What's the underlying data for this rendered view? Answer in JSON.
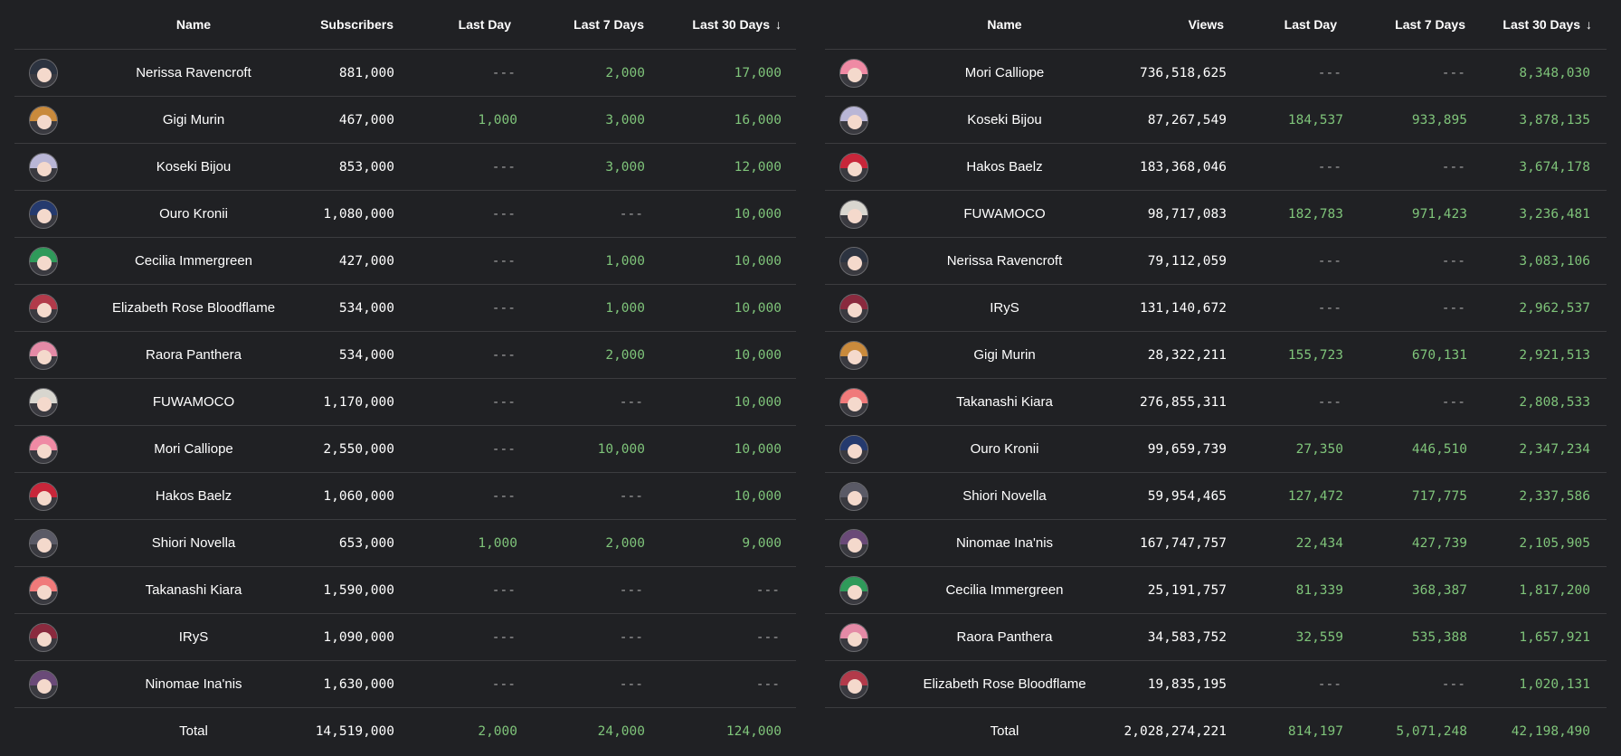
{
  "colors": {
    "background": "#202124",
    "divider": "#3c3c3f",
    "positive": "#7fc47a",
    "dash": "#a8a8a8",
    "text": "#ffffff"
  },
  "subscribers_table": {
    "headers": [
      "Name",
      "Subscribers",
      "Last Day",
      "Last 7 Days",
      "Last 30 Days"
    ],
    "sort_icon": "arrow-down-icon",
    "rows": [
      {
        "name": "Nerissa Ravencroft",
        "v1": "881,000",
        "v2": "---",
        "v3": "2,000",
        "v4": "17,000",
        "hair": "#2c3340"
      },
      {
        "name": "Gigi Murin",
        "v1": "467,000",
        "v2": "1,000",
        "v3": "3,000",
        "v4": "16,000",
        "hair": "#c98a3c"
      },
      {
        "name": "Koseki Bijou",
        "v1": "853,000",
        "v2": "---",
        "v3": "3,000",
        "v4": "12,000",
        "hair": "#b9b6d6"
      },
      {
        "name": "Ouro Kronii",
        "v1": "1,080,000",
        "v2": "---",
        "v3": "---",
        "v4": "10,000",
        "hair": "#253a6e"
      },
      {
        "name": "Cecilia Immergreen",
        "v1": "427,000",
        "v2": "---",
        "v3": "1,000",
        "v4": "10,000",
        "hair": "#2f9a5a"
      },
      {
        "name": "Elizabeth Rose Bloodflame",
        "v1": "534,000",
        "v2": "---",
        "v3": "1,000",
        "v4": "10,000",
        "hair": "#b23a4a"
      },
      {
        "name": "Raora Panthera",
        "v1": "534,000",
        "v2": "---",
        "v3": "2,000",
        "v4": "10,000",
        "hair": "#e48aa6"
      },
      {
        "name": "FUWAMOCO",
        "v1": "1,170,000",
        "v2": "---",
        "v3": "---",
        "v4": "10,000",
        "hair": "#d8d6cf"
      },
      {
        "name": "Mori Calliope",
        "v1": "2,550,000",
        "v2": "---",
        "v3": "10,000",
        "v4": "10,000",
        "hair": "#ef8aa4"
      },
      {
        "name": "Hakos Baelz",
        "v1": "1,060,000",
        "v2": "---",
        "v3": "---",
        "v4": "10,000",
        "hair": "#c8263a"
      },
      {
        "name": "Shiori Novella",
        "v1": "653,000",
        "v2": "1,000",
        "v3": "2,000",
        "v4": "9,000",
        "hair": "#5a5a66"
      },
      {
        "name": "Takanashi Kiara",
        "v1": "1,590,000",
        "v2": "---",
        "v3": "---",
        "v4": "---",
        "hair": "#f07a7a"
      },
      {
        "name": "IRyS",
        "v1": "1,090,000",
        "v2": "---",
        "v3": "---",
        "v4": "---",
        "hair": "#8a2a3e"
      },
      {
        "name": "Ninomae Ina'nis",
        "v1": "1,630,000",
        "v2": "---",
        "v3": "---",
        "v4": "---",
        "hair": "#6a4a78"
      }
    ],
    "total": {
      "name": "Total",
      "v1": "14,519,000",
      "v2": "2,000",
      "v3": "24,000",
      "v4": "124,000"
    }
  },
  "views_table": {
    "headers": [
      "Name",
      "Views",
      "Last Day",
      "Last 7 Days",
      "Last 30 Days"
    ],
    "sort_icon": "arrow-down-icon",
    "rows": [
      {
        "name": "Mori Calliope",
        "v1": "736,518,625",
        "v2": "---",
        "v3": "---",
        "v4": "8,348,030",
        "hair": "#ef8aa4"
      },
      {
        "name": "Koseki Bijou",
        "v1": "87,267,549",
        "v2": "184,537",
        "v3": "933,895",
        "v4": "3,878,135",
        "hair": "#b9b6d6"
      },
      {
        "name": "Hakos Baelz",
        "v1": "183,368,046",
        "v2": "---",
        "v3": "---",
        "v4": "3,674,178",
        "hair": "#c8263a"
      },
      {
        "name": "FUWAMOCO",
        "v1": "98,717,083",
        "v2": "182,783",
        "v3": "971,423",
        "v4": "3,236,481",
        "hair": "#d8d6cf"
      },
      {
        "name": "Nerissa Ravencroft",
        "v1": "79,112,059",
        "v2": "---",
        "v3": "---",
        "v4": "3,083,106",
        "hair": "#2c3340"
      },
      {
        "name": "IRyS",
        "v1": "131,140,672",
        "v2": "---",
        "v3": "---",
        "v4": "2,962,537",
        "hair": "#8a2a3e"
      },
      {
        "name": "Gigi Murin",
        "v1": "28,322,211",
        "v2": "155,723",
        "v3": "670,131",
        "v4": "2,921,513",
        "hair": "#c98a3c"
      },
      {
        "name": "Takanashi Kiara",
        "v1": "276,855,311",
        "v2": "---",
        "v3": "---",
        "v4": "2,808,533",
        "hair": "#f07a7a"
      },
      {
        "name": "Ouro Kronii",
        "v1": "99,659,739",
        "v2": "27,350",
        "v3": "446,510",
        "v4": "2,347,234",
        "hair": "#253a6e"
      },
      {
        "name": "Shiori Novella",
        "v1": "59,954,465",
        "v2": "127,472",
        "v3": "717,775",
        "v4": "2,337,586",
        "hair": "#5a5a66"
      },
      {
        "name": "Ninomae Ina'nis",
        "v1": "167,747,757",
        "v2": "22,434",
        "v3": "427,739",
        "v4": "2,105,905",
        "hair": "#6a4a78"
      },
      {
        "name": "Cecilia Immergreen",
        "v1": "25,191,757",
        "v2": "81,339",
        "v3": "368,387",
        "v4": "1,817,200",
        "hair": "#2f9a5a"
      },
      {
        "name": "Raora Panthera",
        "v1": "34,583,752",
        "v2": "32,559",
        "v3": "535,388",
        "v4": "1,657,921",
        "hair": "#e48aa6"
      },
      {
        "name": "Elizabeth Rose Bloodflame",
        "v1": "19,835,195",
        "v2": "---",
        "v3": "---",
        "v4": "1,020,131",
        "hair": "#b23a4a"
      }
    ],
    "total": {
      "name": "Total",
      "v1": "2,028,274,221",
      "v2": "814,197",
      "v3": "5,071,248",
      "v4": "42,198,490"
    }
  }
}
